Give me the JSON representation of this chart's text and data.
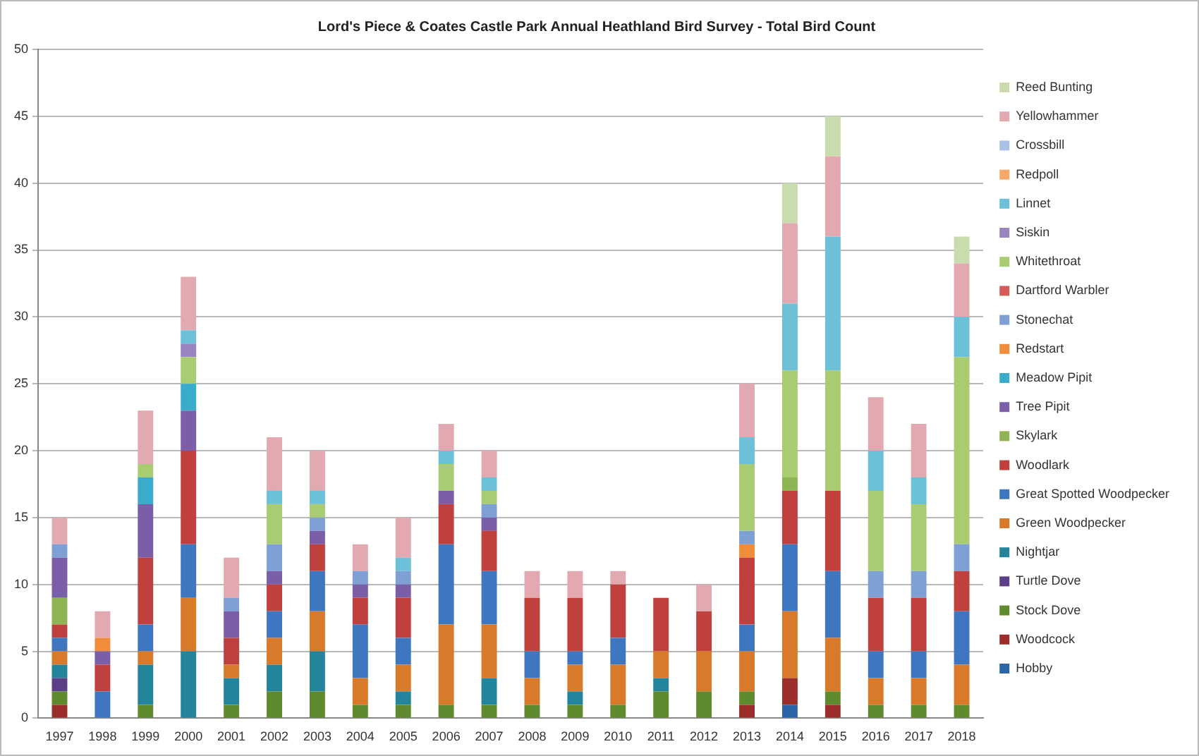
{
  "chart_data": {
    "type": "bar",
    "title": "Lord's Piece & Coates Castle Park Annual Heathland Bird Survey - Total Bird Count",
    "stacked": true,
    "categories": [
      "1997",
      "1998",
      "1999",
      "2000",
      "2001",
      "2002",
      "2003",
      "2004",
      "2005",
      "2006",
      "2007",
      "2008",
      "2009",
      "2010",
      "2011",
      "2012",
      "2013",
      "2014",
      "2015",
      "2016",
      "2017",
      "2018"
    ],
    "ylim": [
      0,
      50
    ],
    "yticks": [
      0,
      5,
      10,
      15,
      20,
      25,
      30,
      35,
      40,
      45,
      50
    ],
    "grid": "y",
    "legend": "right",
    "series": [
      {
        "name": "Hobby",
        "color": "#2c64a8",
        "values": [
          null,
          null,
          null,
          null,
          null,
          null,
          null,
          null,
          null,
          null,
          null,
          null,
          null,
          null,
          null,
          null,
          null,
          1,
          null,
          null,
          null,
          null
        ]
      },
      {
        "name": "Woodcock",
        "color": "#9b2d2a",
        "values": [
          1,
          null,
          null,
          null,
          null,
          null,
          null,
          null,
          null,
          null,
          null,
          null,
          null,
          null,
          null,
          null,
          1,
          2,
          1,
          null,
          null,
          null
        ]
      },
      {
        "name": "Stock Dove",
        "color": "#5f8a2e",
        "values": [
          1,
          null,
          1,
          null,
          1,
          2,
          2,
          1,
          1,
          1,
          1,
          1,
          1,
          1,
          2,
          2,
          1,
          null,
          1,
          1,
          1,
          1
        ]
      },
      {
        "name": "Turtle Dove",
        "color": "#5c3f86",
        "values": [
          1,
          null,
          null,
          null,
          null,
          null,
          null,
          null,
          null,
          null,
          null,
          null,
          null,
          null,
          null,
          null,
          null,
          null,
          null,
          null,
          null,
          null
        ]
      },
      {
        "name": "Nightjar",
        "color": "#23849b",
        "values": [
          1,
          null,
          3,
          5,
          2,
          2,
          3,
          null,
          1,
          null,
          2,
          null,
          1,
          null,
          1,
          null,
          null,
          null,
          null,
          null,
          null,
          null
        ]
      },
      {
        "name": "Green Woodpecker",
        "color": "#d9792a",
        "values": [
          1,
          null,
          1,
          4,
          1,
          2,
          3,
          2,
          2,
          6,
          4,
          2,
          2,
          3,
          2,
          3,
          3,
          5,
          4,
          2,
          2,
          3
        ]
      },
      {
        "name": "Great Spotted Woodpecker",
        "color": "#3f76c0",
        "values": [
          1,
          2,
          2,
          4,
          null,
          2,
          3,
          4,
          2,
          6,
          4,
          2,
          1,
          2,
          null,
          null,
          2,
          5,
          5,
          2,
          2,
          4
        ]
      },
      {
        "name": "Woodlark",
        "color": "#c0403d",
        "values": [
          1,
          2,
          5,
          7,
          2,
          2,
          2,
          2,
          3,
          3,
          3,
          4,
          4,
          4,
          4,
          3,
          5,
          4,
          6,
          4,
          4,
          3
        ]
      },
      {
        "name": "Skylark",
        "color": "#8db553",
        "values": [
          2,
          null,
          null,
          null,
          null,
          null,
          null,
          null,
          null,
          null,
          null,
          null,
          null,
          null,
          null,
          null,
          null,
          1,
          null,
          null,
          null,
          null
        ]
      },
      {
        "name": "Tree Pipit",
        "color": "#7a5ea8",
        "values": [
          3,
          1,
          4,
          3,
          2,
          1,
          1,
          1,
          1,
          1,
          1,
          null,
          null,
          null,
          null,
          null,
          null,
          null,
          null,
          null,
          null,
          null
        ]
      },
      {
        "name": "Meadow Pipit",
        "color": "#3aaccb",
        "values": [
          null,
          null,
          2,
          2,
          null,
          null,
          null,
          null,
          null,
          null,
          null,
          null,
          null,
          null,
          null,
          null,
          null,
          null,
          null,
          null,
          null,
          null
        ]
      },
      {
        "name": "Redstart",
        "color": "#f08c3a",
        "values": [
          null,
          1,
          null,
          null,
          null,
          null,
          null,
          null,
          null,
          null,
          null,
          null,
          null,
          null,
          null,
          null,
          1,
          null,
          null,
          null,
          null,
          null
        ]
      },
      {
        "name": "Stonechat",
        "color": "#7ea0d4",
        "values": [
          1,
          null,
          null,
          null,
          1,
          2,
          1,
          1,
          1,
          null,
          1,
          null,
          null,
          null,
          null,
          null,
          1,
          null,
          null,
          2,
          2,
          2
        ]
      },
      {
        "name": "Dartford Warbler",
        "color": "#d45b58",
        "values": [
          null,
          null,
          null,
          null,
          null,
          null,
          null,
          null,
          null,
          null,
          null,
          null,
          null,
          null,
          null,
          null,
          null,
          null,
          null,
          null,
          null,
          null
        ]
      },
      {
        "name": "Whitethroat",
        "color": "#a9cc72",
        "values": [
          null,
          null,
          1,
          2,
          null,
          3,
          1,
          null,
          null,
          2,
          1,
          null,
          null,
          null,
          null,
          null,
          5,
          8,
          9,
          6,
          5,
          14
        ]
      },
      {
        "name": "Siskin",
        "color": "#9a84bd",
        "values": [
          null,
          null,
          null,
          1,
          null,
          null,
          null,
          null,
          null,
          null,
          null,
          null,
          null,
          null,
          null,
          null,
          null,
          null,
          null,
          null,
          null,
          null
        ]
      },
      {
        "name": "Linnet",
        "color": "#6cc0d8",
        "values": [
          null,
          null,
          null,
          1,
          null,
          1,
          1,
          null,
          1,
          1,
          1,
          null,
          null,
          null,
          null,
          null,
          2,
          5,
          10,
          3,
          2,
          3
        ]
      },
      {
        "name": "Redpoll",
        "color": "#f5a86a",
        "values": [
          null,
          null,
          null,
          null,
          null,
          null,
          null,
          null,
          null,
          null,
          null,
          null,
          null,
          null,
          null,
          null,
          null,
          null,
          null,
          null,
          null,
          null
        ]
      },
      {
        "name": "Crossbill",
        "color": "#a9c1e6",
        "values": [
          null,
          null,
          null,
          null,
          null,
          null,
          null,
          null,
          null,
          null,
          null,
          null,
          null,
          null,
          null,
          null,
          null,
          null,
          null,
          null,
          null,
          null
        ]
      },
      {
        "name": "Yellowhammer",
        "color": "#e2aab0",
        "values": [
          2,
          2,
          4,
          4,
          3,
          4,
          3,
          2,
          3,
          2,
          2,
          2,
          2,
          1,
          null,
          2,
          4,
          6,
          6,
          4,
          4,
          4
        ]
      },
      {
        "name": "Reed Bunting",
        "color": "#c9dcae",
        "values": [
          null,
          null,
          null,
          null,
          null,
          null,
          null,
          null,
          null,
          null,
          null,
          null,
          null,
          null,
          null,
          null,
          null,
          3,
          3,
          null,
          null,
          2
        ]
      }
    ]
  }
}
